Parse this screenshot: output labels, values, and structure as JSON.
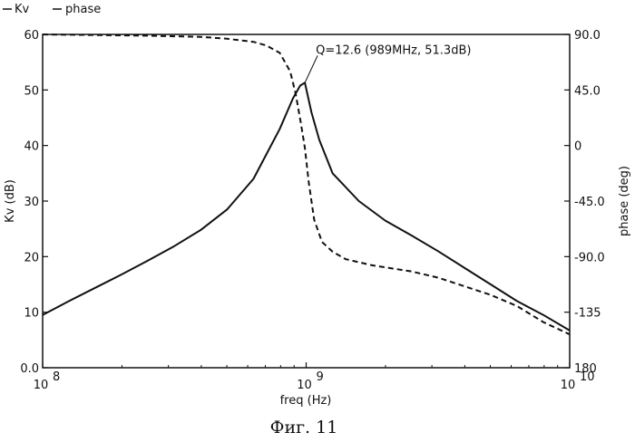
{
  "chart_data": {
    "type": "line",
    "legend": {
      "placement": "top-left",
      "entries": [
        "Kv",
        "phase"
      ]
    },
    "xlabel": "freq (Hz)",
    "ylabel_left": "Kv (dB)",
    "ylabel_right": "phase (deg)",
    "x_scale": "log",
    "xlim": [
      100000000,
      10000000000
    ],
    "ylim_left": [
      0,
      60
    ],
    "ylim_right": [
      -180,
      90
    ],
    "x_ticks": [
      {
        "value": 100000000,
        "base": "10",
        "exp": "8"
      },
      {
        "value": 1000000000,
        "base": "10",
        "exp": "9"
      },
      {
        "value": 10000000000,
        "base": "10",
        "exp": "10"
      }
    ],
    "y_ticks_left": [
      {
        "value": 0,
        "label": "0.0"
      },
      {
        "value": 10,
        "label": "10"
      },
      {
        "value": 20,
        "label": "20"
      },
      {
        "value": 30,
        "label": "30"
      },
      {
        "value": 40,
        "label": "40"
      },
      {
        "value": 50,
        "label": "50"
      },
      {
        "value": 60,
        "label": "60"
      }
    ],
    "y_ticks_right": [
      {
        "value": 90,
        "label": "90.0"
      },
      {
        "value": 45,
        "label": "45.0"
      },
      {
        "value": 0,
        "label": "0"
      },
      {
        "value": -45,
        "label": "-45.0"
      },
      {
        "value": -90,
        "label": "-90.0"
      },
      {
        "value": -135,
        "label": "-135"
      },
      {
        "value": -180,
        "label": "180"
      }
    ],
    "grid": false,
    "annotation": {
      "text": "Q=12.6 (989MHz, 51.3dB)",
      "x": 989000000,
      "y": 51.3
    },
    "series": [
      {
        "name": "Kv",
        "axis": "left",
        "style": "solid",
        "x": [
          100000000,
          125900000,
          158500000,
          199500000,
          251200000,
          316200000,
          398100000,
          501200000,
          631000000,
          707900000,
          794300000,
          891300000,
          950000000,
          989000000,
          1047000000,
          1122000000,
          1259000000,
          1585000000,
          1995000000,
          2512000000,
          3162000000,
          3981000000,
          5012000000,
          6310000000,
          7943000000,
          10000000000
        ],
        "values": [
          9.5,
          12.0,
          14.4,
          16.8,
          19.3,
          21.9,
          24.8,
          28.5,
          34.0,
          38.5,
          43.0,
          48.5,
          50.8,
          51.3,
          46.0,
          41.0,
          35.0,
          30.0,
          26.5,
          23.8,
          21.0,
          18.0,
          15.0,
          12.0,
          9.5,
          6.7
        ]
      },
      {
        "name": "phase",
        "axis": "right",
        "style": "dashed",
        "x": [
          100000000,
          158500000,
          251200000,
          398100000,
          501200000,
          631000000,
          707900000,
          794300000,
          870000000,
          912000000,
          955000000,
          989000000,
          1023000000,
          1072000000,
          1148000000,
          1259000000,
          1413000000,
          1778000000,
          2512000000,
          3162000000,
          3981000000,
          5012000000,
          6310000000,
          7943000000,
          10000000000
        ],
        "values": [
          90,
          89.5,
          89,
          88,
          86.5,
          84,
          81,
          75,
          60,
          42,
          18,
          -2,
          -30,
          -60,
          -78,
          -86,
          -92,
          -97,
          -102,
          -107,
          -114,
          -121,
          -130,
          -143,
          -153
        ]
      }
    ]
  },
  "caption": "Фиг. 11"
}
